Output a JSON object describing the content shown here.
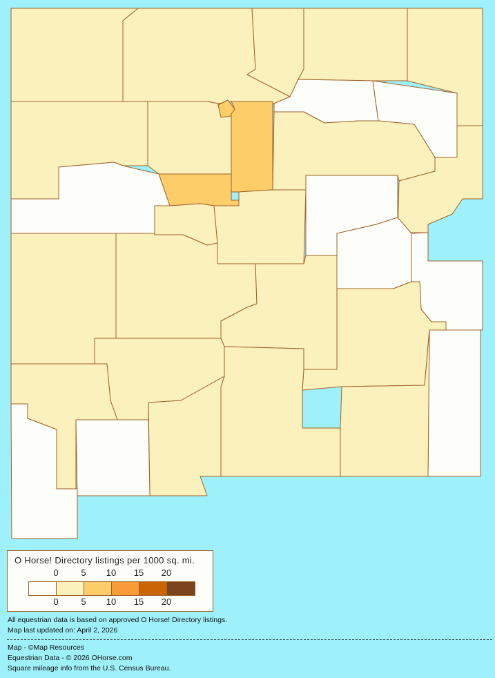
{
  "legend": {
    "title": "O Horse! Directory listings per 1000 sq. mi.",
    "ticks": [
      "0",
      "5",
      "10",
      "15",
      "20"
    ],
    "colors": [
      "#FDFEFA",
      "#FBF1BD",
      "#FDCD6A",
      "#FA9B3A",
      "#CA6506",
      "#7B441E"
    ]
  },
  "map": {
    "background": "#9EF0FB",
    "border_color": "#A0612A",
    "county_levels": [
      1,
      1,
      1,
      1,
      1,
      0,
      0,
      1,
      1,
      1,
      2,
      2,
      2,
      1,
      0,
      1,
      1,
      0,
      0,
      0,
      0,
      1,
      1,
      1,
      1,
      1,
      1,
      1,
      1,
      0,
      1,
      0
    ]
  },
  "notes": {
    "data_basis": "All equestrian data is based on approved O Horse! Directory listings.",
    "updated": "Map last updated on: April 2, 2026",
    "map_credit": "Map - ©Map Resources",
    "data_credit": "Equestrian Data - © 2026 OHorse.com",
    "census_credit": "Square mileage info from the U.S. Census Bureau."
  }
}
